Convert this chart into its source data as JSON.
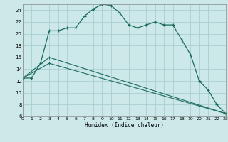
{
  "xlabel": "Humidex (Indice chaleur)",
  "background_color": "#cce8e8",
  "grid_color": "#aacfcf",
  "line_color": "#1a6b5a",
  "xmin": 0,
  "xmax": 23,
  "ymin": 6,
  "ymax": 25,
  "yticks": [
    6,
    8,
    10,
    12,
    14,
    16,
    18,
    20,
    22,
    24
  ],
  "xticks": [
    0,
    1,
    2,
    3,
    4,
    5,
    6,
    7,
    8,
    9,
    10,
    11,
    12,
    13,
    14,
    15,
    16,
    17,
    18,
    19,
    20,
    21,
    22,
    23
  ],
  "line1_x": [
    0,
    1,
    2,
    3,
    4,
    5,
    6,
    7,
    8,
    9,
    10,
    11,
    12,
    13,
    14,
    15,
    16,
    17,
    18,
    19,
    20,
    21,
    22,
    23
  ],
  "line1_y": [
    12.5,
    12.5,
    15.0,
    20.5,
    20.5,
    21.0,
    21.0,
    23.0,
    24.2,
    25.0,
    24.8,
    23.5,
    21.5,
    21.0,
    21.5,
    22.0,
    21.5,
    21.5,
    19.0,
    16.5,
    12.0,
    10.5,
    8.0,
    6.5
  ],
  "line2_x": [
    0,
    3,
    23
  ],
  "line2_y": [
    12.5,
    16.0,
    6.5
  ],
  "line3_x": [
    0,
    3,
    23
  ],
  "line3_y": [
    12.5,
    15.0,
    6.5
  ]
}
